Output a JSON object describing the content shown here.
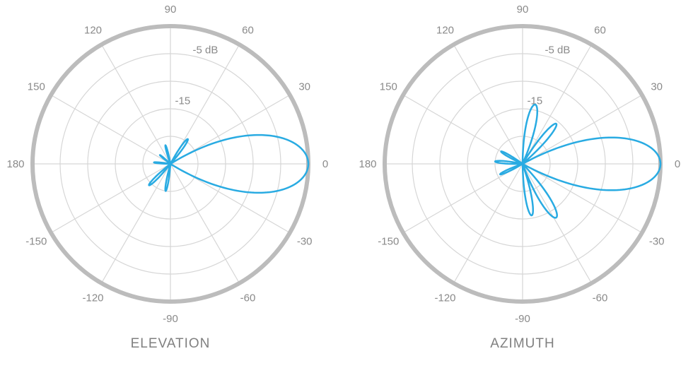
{
  "page": {
    "background": "#ffffff",
    "accent_color": "#29abe2",
    "grid_color": "#d6d6d6",
    "outer_ring_color": "#bcbcbc",
    "label_color": "#8a8a8a"
  },
  "chart_data": [
    {
      "type": "line",
      "polar": true,
      "title": "ELEVATION",
      "r_range_db": [
        -25,
        0
      ],
      "radial_ticks_db": [
        0,
        -5,
        -10,
        -15,
        -20
      ],
      "db_labels": [
        {
          "db": -5,
          "label": "-5 dB",
          "angle": 73
        },
        {
          "db": -15,
          "label": "-15",
          "angle": 79
        }
      ],
      "angle_ticks": [
        {
          "angle": 0,
          "label": "0"
        },
        {
          "angle": 30,
          "label": "30"
        },
        {
          "angle": 60,
          "label": "60"
        },
        {
          "angle": 90,
          "label": "90"
        },
        {
          "angle": 120,
          "label": "120"
        },
        {
          "angle": 150,
          "label": "150"
        },
        {
          "angle": 180,
          "label": "180"
        },
        {
          "angle": 210,
          "label": "-150"
        },
        {
          "angle": 240,
          "label": "-120"
        },
        {
          "angle": 270,
          "label": "-90"
        },
        {
          "angle": 300,
          "label": "-60"
        },
        {
          "angle": 330,
          "label": "-30"
        }
      ],
      "series": [
        {
          "name": "gain_db",
          "floor_db": -25,
          "lobes": [
            {
              "angle_deg": 0,
              "peak_db": 0,
              "halfwidth_deg": 11
            },
            {
              "angle_deg": 55,
              "peak_db": -19.5,
              "halfwidth_deg": 5
            },
            {
              "angle_deg": 105,
              "peak_db": -21.5,
              "halfwidth_deg": 4.5
            },
            {
              "angle_deg": 140,
              "peak_db": -22.5,
              "halfwidth_deg": 4
            },
            {
              "angle_deg": 175,
              "peak_db": -22,
              "halfwidth_deg": 4.5
            },
            {
              "angle_deg": 225,
              "peak_db": -19.5,
              "halfwidth_deg": 5
            },
            {
              "angle_deg": 260,
              "peak_db": -20,
              "halfwidth_deg": 4.5
            }
          ]
        }
      ]
    },
    {
      "type": "line",
      "polar": true,
      "title": "AZIMUTH",
      "r_range_db": [
        -25,
        0
      ],
      "radial_ticks_db": [
        0,
        -5,
        -10,
        -15,
        -20
      ],
      "db_labels": [
        {
          "db": -5,
          "label": "-5 dB",
          "angle": 73
        },
        {
          "db": -15,
          "label": "-15",
          "angle": 79
        }
      ],
      "angle_ticks": [
        {
          "angle": 0,
          "label": "0"
        },
        {
          "angle": 30,
          "label": "30"
        },
        {
          "angle": 60,
          "label": "60"
        },
        {
          "angle": 90,
          "label": "90"
        },
        {
          "angle": 120,
          "label": "120"
        },
        {
          "angle": 150,
          "label": "150"
        },
        {
          "angle": 180,
          "label": "180"
        },
        {
          "angle": 210,
          "label": "-150"
        },
        {
          "angle": 240,
          "label": "-120"
        },
        {
          "angle": 270,
          "label": "-90"
        },
        {
          "angle": 300,
          "label": "-60"
        },
        {
          "angle": 330,
          "label": "-30"
        }
      ],
      "series": [
        {
          "name": "gain_db",
          "floor_db": -25,
          "lobes": [
            {
              "angle_deg": 0,
              "peak_db": 0,
              "halfwidth_deg": 10
            },
            {
              "angle_deg": 50,
              "peak_db": -15.5,
              "halfwidth_deg": 5
            },
            {
              "angle_deg": 78,
              "peak_db": -14,
              "halfwidth_deg": 6
            },
            {
              "angle_deg": 150,
              "peak_db": -20.5,
              "halfwidth_deg": 5
            },
            {
              "angle_deg": 175,
              "peak_db": -20,
              "halfwidth_deg": 5
            },
            {
              "angle_deg": 205,
              "peak_db": -20.5,
              "halfwidth_deg": 5
            },
            {
              "angle_deg": 280,
              "peak_db": -15.5,
              "halfwidth_deg": 5
            },
            {
              "angle_deg": 302,
              "peak_db": -13.5,
              "halfwidth_deg": 6
            }
          ]
        }
      ]
    }
  ]
}
